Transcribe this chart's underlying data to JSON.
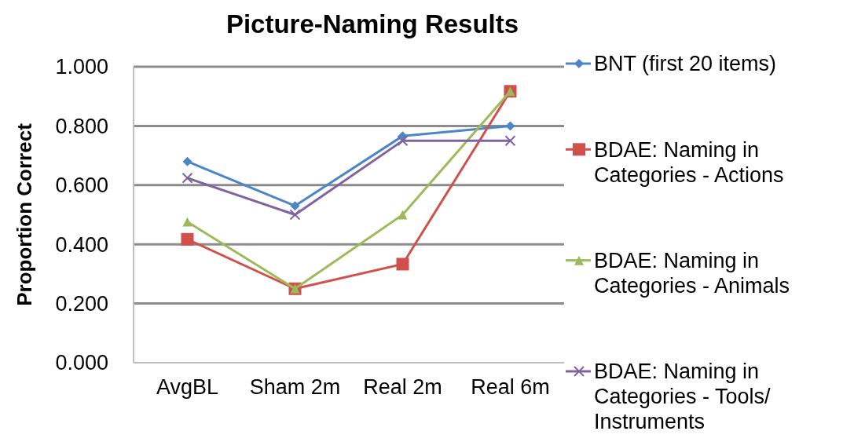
{
  "chart_data": {
    "type": "line",
    "title": "Picture-Naming Results",
    "ylabel": "Proportion Correct",
    "categories": [
      "AvgBL",
      "Sham 2m",
      "Real 2m",
      "Real 6m"
    ],
    "series": [
      {
        "name": "BNT (first 20 items)",
        "color": "#4a86c8",
        "marker": "diamond",
        "values": [
          0.68,
          0.53,
          0.766,
          0.8
        ]
      },
      {
        "name": "BDAE: Naming in Categories - Actions",
        "color": "#d0504b",
        "marker": "square",
        "values": [
          0.417,
          0.25,
          0.333,
          0.917
        ]
      },
      {
        "name": "BDAE: Naming in Categories - Animals",
        "color": "#9bbb59",
        "marker": "triangle",
        "values": [
          0.476,
          0.25,
          0.5,
          0.917
        ]
      },
      {
        "name": "BDAE: Naming in Categories - Tools/ Instruments",
        "color": "#8064a2",
        "marker": "cross",
        "values": [
          0.624,
          0.5,
          0.75,
          0.75
        ]
      }
    ],
    "ylim": [
      0,
      1
    ],
    "yticks": [
      {
        "value": 0,
        "label": "0.000"
      },
      {
        "value": 0.2,
        "label": "0.200"
      },
      {
        "value": 0.4,
        "label": "0.400"
      },
      {
        "value": 0.6,
        "label": "0.600"
      },
      {
        "value": 0.8,
        "label": "0.800"
      },
      {
        "value": 1,
        "label": "1.000"
      }
    ],
    "grid": "y",
    "legend": "right",
    "line_style": "solid"
  }
}
